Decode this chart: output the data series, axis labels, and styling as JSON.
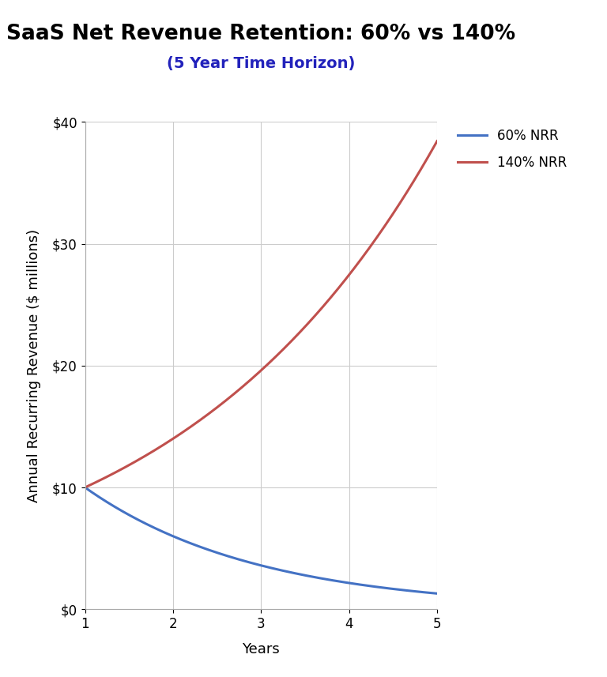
{
  "title": "SaaS Net Revenue Retention: 60% vs 140%",
  "subtitle": "(5 Year Time Horizon)",
  "subtitle_color": "#2222bb",
  "xlabel": "Years",
  "ylabel": "Annual Recurring Revenue ($ millions)",
  "xlim": [
    1,
    5
  ],
  "ylim": [
    0,
    40
  ],
  "yticks": [
    0,
    10,
    20,
    30,
    40
  ],
  "ytick_labels": [
    "$0",
    "$10",
    "$20",
    "$30",
    "$40"
  ],
  "xticks": [
    1,
    2,
    3,
    4,
    5
  ],
  "initial_revenue": 10,
  "nrr_low": 0.6,
  "nrr_high": 1.4,
  "line_color_low": "#4472c4",
  "line_color_high": "#c0504d",
  "line_width": 2.2,
  "legend_labels": [
    "60% NRR",
    "140% NRR"
  ],
  "title_fontsize": 19,
  "subtitle_fontsize": 14,
  "label_fontsize": 13,
  "tick_fontsize": 12,
  "legend_fontsize": 12,
  "grid_color": "#cccccc",
  "grid_linewidth": 0.8,
  "background_color": "#ffffff",
  "title_fontweight": "bold"
}
